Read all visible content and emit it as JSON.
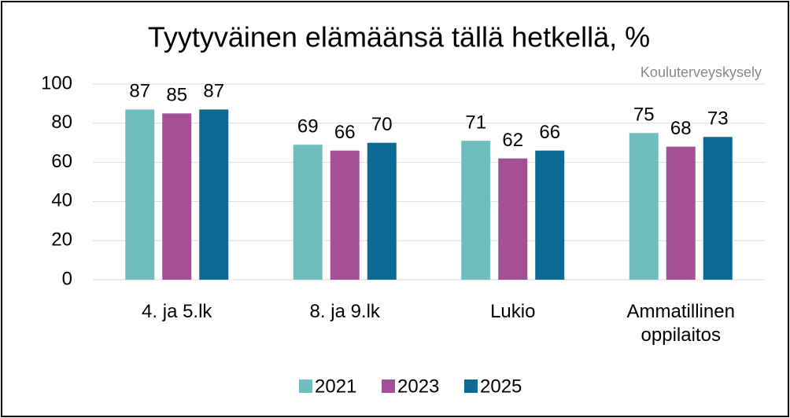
{
  "chart_data": {
    "type": "bar",
    "title": "Tyytyväinen elämäänsä tällä hetkellä, %",
    "subtitle": "Kouluterveyskysely",
    "categories": [
      "4. ja 5.lk",
      "8. ja 9.lk",
      "Lukio",
      "Ammatillinen oppilaitos"
    ],
    "series": [
      {
        "name": "2021",
        "color": "#6fbdbd",
        "values": [
          87,
          69,
          71,
          75
        ]
      },
      {
        "name": "2023",
        "color": "#a54f96",
        "values": [
          85,
          66,
          62,
          68
        ]
      },
      {
        "name": "2025",
        "color": "#0d6b93",
        "values": [
          87,
          70,
          66,
          73
        ]
      }
    ],
    "ylim": [
      0,
      100
    ],
    "yticks": [
      0,
      20,
      40,
      60,
      80,
      100
    ],
    "grid": true,
    "legend": "bottom"
  }
}
